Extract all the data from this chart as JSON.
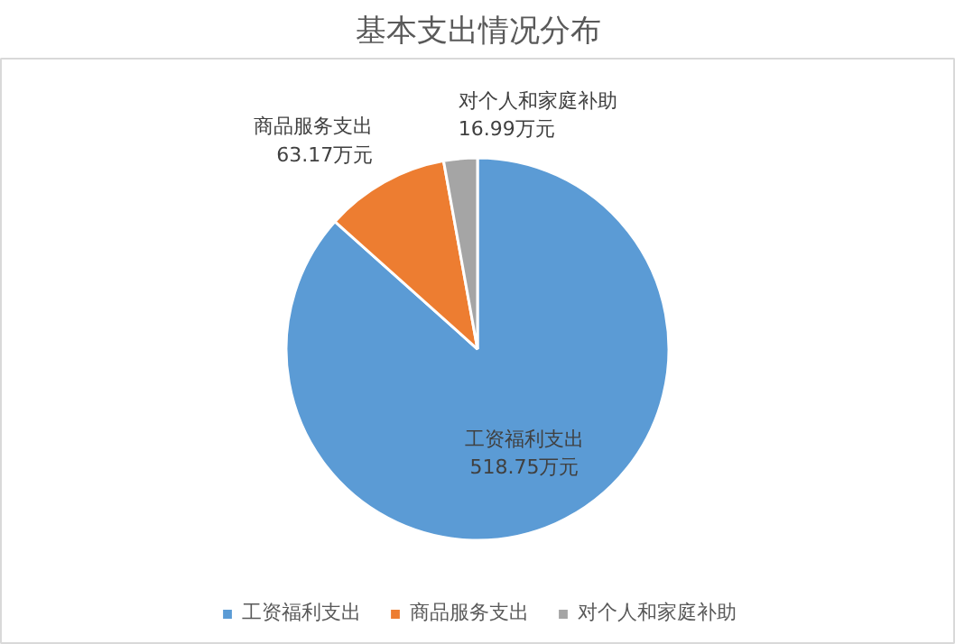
{
  "chart_data": {
    "type": "pie",
    "title": "基本支出情况分布",
    "categories": [
      "工资福利支出",
      "商品服务支出",
      "对个人和家庭补助"
    ],
    "values": [
      518.75,
      63.17,
      16.99
    ],
    "value_labels": [
      "518.75万元",
      "63.17万元",
      "16.99万元"
    ],
    "colors": [
      "#5b9bd5",
      "#ed7d31",
      "#a5a5a5"
    ],
    "legend": "bottom"
  }
}
